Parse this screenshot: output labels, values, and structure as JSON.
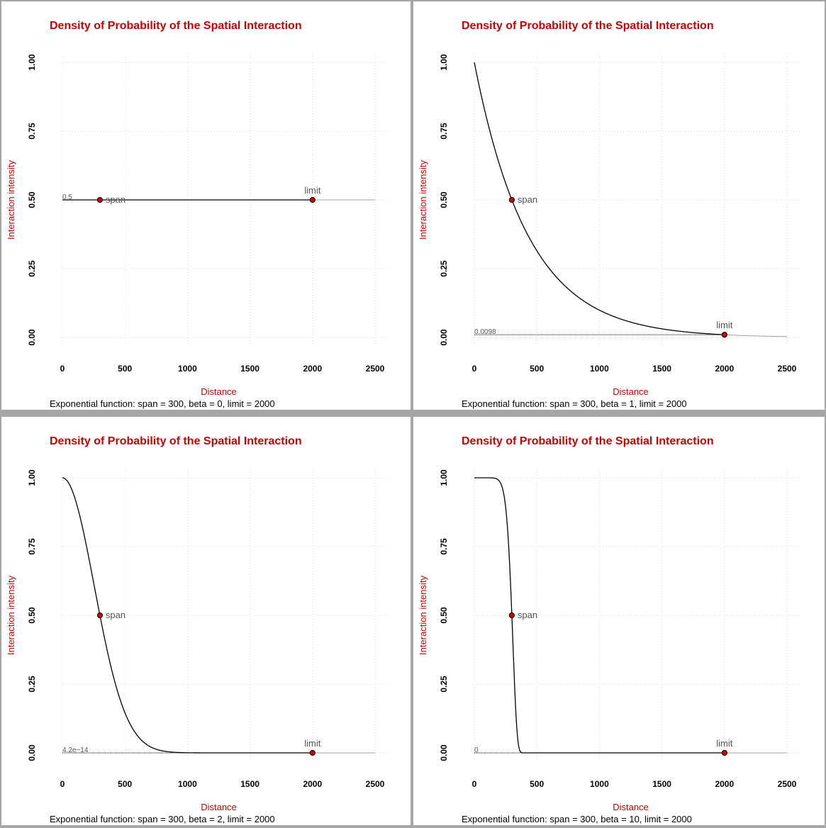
{
  "colors": {
    "title": "#cc0000",
    "axis_title": "#cc0000",
    "curve": "#000000",
    "tail_line": "#a0a0a0",
    "grid": "#d8d8d8",
    "point_fill": "#cc0000",
    "point_stroke": "#000000",
    "label_text": "#555555"
  },
  "chart_data": [
    {
      "type": "line",
      "title": "Density of Probability of the Spatial Interaction",
      "xlabel": "Distance",
      "ylabel": "Interaction intensity",
      "subtitle": "Exponential function: span = 300, beta = 0, limit = 2000",
      "xlim": [
        0,
        2500
      ],
      "ylim": [
        0,
        1
      ],
      "grid": true,
      "x_ticks": [
        "0",
        "500",
        "1000",
        "1500",
        "2000",
        "2500"
      ],
      "y_ticks": [
        "0.00",
        "0.25",
        "0.50",
        "0.75",
        "1.00"
      ],
      "function": "exponential",
      "span": 300,
      "beta": 0,
      "limit": 2000,
      "points": [
        {
          "label": "span",
          "x": 300,
          "y": 0.5
        },
        {
          "label": "limit",
          "x": 2000,
          "y": 0.5
        }
      ],
      "limit_value_label": "0.5",
      "limit_value": 0.5
    },
    {
      "type": "line",
      "title": "Density of Probability of the Spatial Interaction",
      "xlabel": "Distance",
      "ylabel": "Interaction intensity",
      "subtitle": "Exponential function: span = 300, beta = 1, limit = 2000",
      "xlim": [
        0,
        2500
      ],
      "ylim": [
        0,
        1
      ],
      "grid": true,
      "x_ticks": [
        "0",
        "500",
        "1000",
        "1500",
        "2000",
        "2500"
      ],
      "y_ticks": [
        "0.00",
        "0.25",
        "0.50",
        "0.75",
        "1.00"
      ],
      "function": "exponential",
      "span": 300,
      "beta": 1,
      "limit": 2000,
      "points": [
        {
          "label": "span",
          "x": 300,
          "y": 0.5
        },
        {
          "label": "limit",
          "x": 2000,
          "y": 0.0098
        }
      ],
      "limit_value_label": "0.0098",
      "limit_value": 0.0098
    },
    {
      "type": "line",
      "title": "Density of Probability of the Spatial Interaction",
      "xlabel": "Distance",
      "ylabel": "Interaction intensity",
      "subtitle": "Exponential function: span = 300, beta = 2, limit = 2000",
      "xlim": [
        0,
        2500
      ],
      "ylim": [
        0,
        1
      ],
      "grid": true,
      "x_ticks": [
        "0",
        "500",
        "1000",
        "1500",
        "2000",
        "2500"
      ],
      "y_ticks": [
        "0.00",
        "0.25",
        "0.50",
        "0.75",
        "1.00"
      ],
      "function": "exponential",
      "span": 300,
      "beta": 2,
      "limit": 2000,
      "points": [
        {
          "label": "span",
          "x": 300,
          "y": 0.5
        },
        {
          "label": "limit",
          "x": 2000,
          "y": 0
        }
      ],
      "limit_value_label": "4.2e−14",
      "limit_value": 4.2e-14
    },
    {
      "type": "line",
      "title": "Density of Probability of the Spatial Interaction",
      "xlabel": "Distance",
      "ylabel": "Interaction intensity",
      "subtitle": "Exponential function: span = 300, beta = 10, limit = 2000",
      "xlim": [
        0,
        2500
      ],
      "ylim": [
        0,
        1
      ],
      "grid": true,
      "x_ticks": [
        "0",
        "500",
        "1000",
        "1500",
        "2000",
        "2500"
      ],
      "y_ticks": [
        "0.00",
        "0.25",
        "0.50",
        "0.75",
        "1.00"
      ],
      "function": "exponential",
      "span": 300,
      "beta": 10,
      "limit": 2000,
      "points": [
        {
          "label": "span",
          "x": 300,
          "y": 0.5
        },
        {
          "label": "limit",
          "x": 2000,
          "y": 0
        }
      ],
      "limit_value_label": "0",
      "limit_value": 0
    }
  ]
}
